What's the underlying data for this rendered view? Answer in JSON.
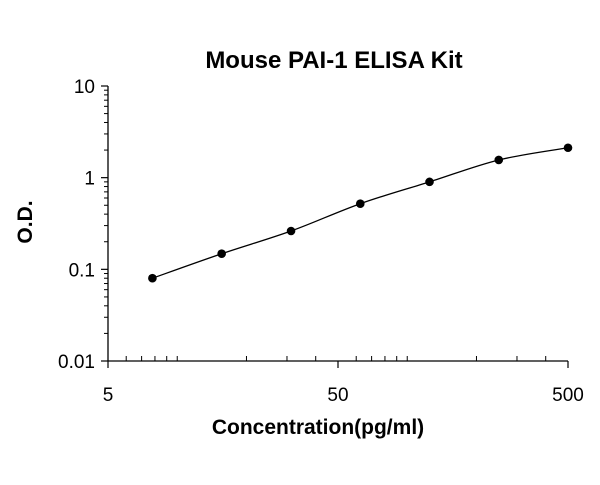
{
  "chart_data": {
    "type": "line",
    "title": "Mouse PAI-1 ELISA Kit",
    "xlabel": "Concentration(pg/ml)",
    "ylabel": "O.D.",
    "xscale": "log",
    "yscale": "log",
    "xlim": [
      5,
      500
    ],
    "ylim": [
      0.01,
      10
    ],
    "x_ticks": [
      5,
      50,
      500
    ],
    "x_tick_labels": [
      "5",
      "50",
      "500"
    ],
    "y_ticks": [
      0.01,
      0.1,
      1,
      10
    ],
    "y_tick_labels": [
      "0.01",
      "0.1",
      "1",
      "10"
    ],
    "grid": false,
    "legend": "none",
    "series": [
      {
        "x": [
          7.8,
          15.6,
          31.25,
          62.5,
          125,
          250,
          500
        ],
        "y": [
          0.08,
          0.148,
          0.262,
          0.52,
          0.9,
          1.56,
          2.12
        ]
      }
    ],
    "colors": {
      "line": "#000000",
      "marker": "#000000"
    }
  }
}
